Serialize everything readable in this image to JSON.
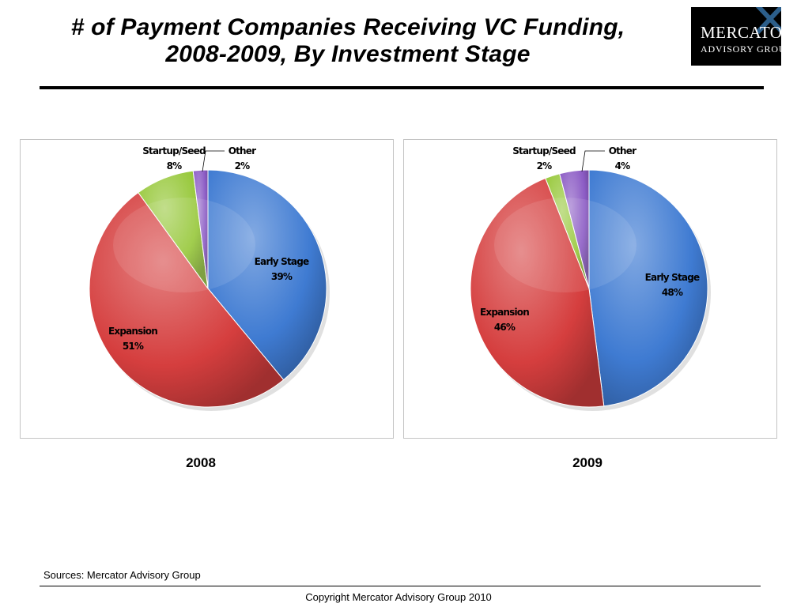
{
  "title": {
    "line1": "# of Payment Companies Receiving VC Funding,",
    "line2": "2008-2009, By Investment Stage"
  },
  "logo": {
    "line1": "MERCATOR",
    "line2": "ADVISORY GROUP"
  },
  "colors": {
    "Early Stage": "#3f7bd2",
    "Expansion": "#d53e3e",
    "Startup/Seed": "#97c83a",
    "Other": "#8c5cc5"
  },
  "chart_data": [
    {
      "type": "pie",
      "title": "2008",
      "categories": [
        "Early Stage",
        "Expansion",
        "Startup/Seed",
        "Other"
      ],
      "values": [
        39,
        51,
        8,
        2
      ],
      "value_labels": [
        "39%",
        "51%",
        "8%",
        "2%"
      ],
      "start_angle_deg": 0,
      "direction": "clockwise",
      "labels_outside": [
        "Startup/Seed",
        "Other"
      ]
    },
    {
      "type": "pie",
      "title": "2009",
      "categories": [
        "Early Stage",
        "Expansion",
        "Startup/Seed",
        "Other"
      ],
      "values": [
        48,
        46,
        2,
        4
      ],
      "value_labels": [
        "48%",
        "46%",
        "2%",
        "4%"
      ],
      "start_angle_deg": 0,
      "direction": "clockwise",
      "labels_outside": [
        "Startup/Seed",
        "Other"
      ]
    }
  ],
  "sources": "Sources: Mercator Advisory Group",
  "copyright": "Copyright Mercator Advisory Group 2010"
}
